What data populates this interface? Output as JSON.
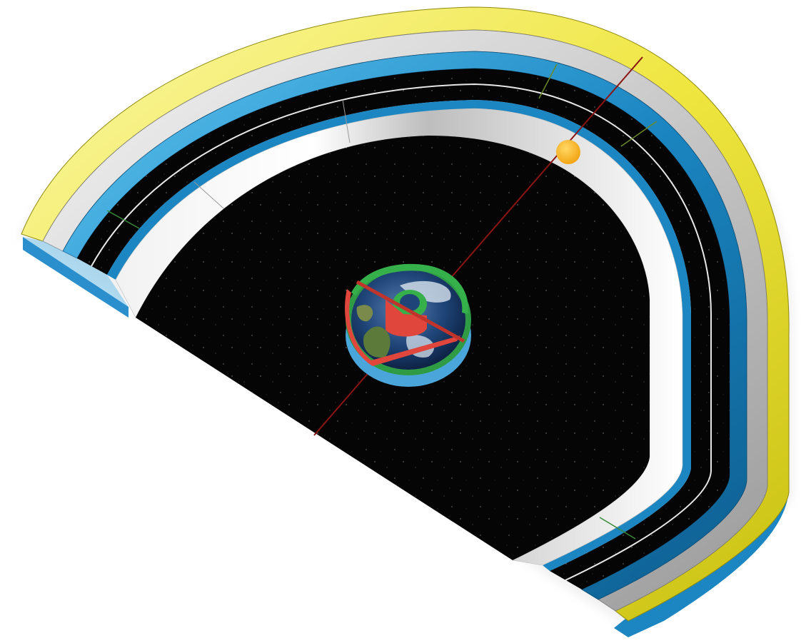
{
  "diagram": {
    "colors": {
      "background": "#ffffff",
      "yellow_band": "#e8e22c",
      "yellow_band_light": "#fbf7a8",
      "silver_band": "#c4c4c4",
      "silver_band_light": "#efefef",
      "blue_band": "#1b86c2",
      "blue_band_light": "#8fd3f5",
      "space_black": "#050505",
      "white_line": "#e8e8e8",
      "sun": "#f7b21a",
      "axis_red": "#8a1512",
      "green_marker": "#3a8a3a",
      "earth_ring_green": "#36b04a",
      "earth_ring_red": "#e0463b",
      "earth_ring_blue": "#5ab2e0",
      "earth_ocean": "#1b3d73",
      "earth_land": "#5c7a3a"
    },
    "elements": {
      "earth": "earth-globe",
      "sun": "sun-disc",
      "axis": "red-axis-line",
      "starfield": "black-starfield"
    }
  }
}
